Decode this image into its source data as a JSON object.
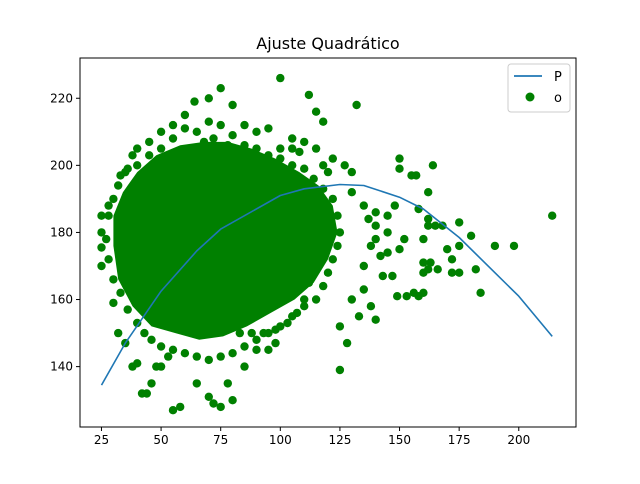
{
  "chart_data": {
    "type": "scatter",
    "title": "Ajuste Quadrático",
    "xlabel": "",
    "ylabel": "",
    "xlim": [
      16,
      224
    ],
    "ylim": [
      122,
      232
    ],
    "x_ticks": [
      25,
      50,
      75,
      100,
      125,
      150,
      175,
      200
    ],
    "y_ticks": [
      140,
      160,
      180,
      200,
      220
    ],
    "grid": false,
    "legend_position": "top-right",
    "colors": {
      "line": "#1f77b4",
      "points": "#008000"
    },
    "series": [
      {
        "name": "P",
        "kind": "line",
        "points": [
          [
            25,
            134.5
          ],
          [
            35,
            147
          ],
          [
            50,
            162.5
          ],
          [
            65,
            174.5
          ],
          [
            75,
            181
          ],
          [
            100,
            191
          ],
          [
            110,
            193
          ],
          [
            125,
            194.3
          ],
          [
            135,
            194
          ],
          [
            150,
            190.5
          ],
          [
            160,
            187
          ],
          [
            175,
            178.5
          ],
          [
            190,
            168
          ],
          [
            200,
            161
          ],
          [
            214,
            149
          ]
        ]
      },
      {
        "name": "o",
        "kind": "scatter",
        "points": [
          [
            25,
            185
          ],
          [
            25,
            180
          ],
          [
            25,
            175.5
          ],
          [
            25,
            170
          ],
          [
            28,
            188
          ],
          [
            30,
            159
          ],
          [
            32,
            150
          ],
          [
            35,
            147
          ],
          [
            38,
            140
          ],
          [
            40,
            141
          ],
          [
            42,
            132
          ],
          [
            44,
            132
          ],
          [
            46,
            135
          ],
          [
            48,
            140
          ],
          [
            50,
            140
          ],
          [
            55,
            127
          ],
          [
            58,
            128
          ],
          [
            65,
            135
          ],
          [
            70,
            131
          ],
          [
            72,
            129
          ],
          [
            75,
            128
          ],
          [
            78,
            135
          ],
          [
            80,
            130
          ],
          [
            85,
            140
          ],
          [
            90,
            145
          ],
          [
            95,
            145
          ],
          [
            98,
            147
          ],
          [
            53,
            143
          ],
          [
            60,
            215
          ],
          [
            64,
            219
          ],
          [
            70,
            220
          ],
          [
            75,
            223
          ],
          [
            80,
            218
          ],
          [
            85,
            212
          ],
          [
            90,
            210
          ],
          [
            95,
            211
          ],
          [
            100,
            226
          ],
          [
            105,
            205
          ],
          [
            112,
            221
          ],
          [
            115,
            216
          ],
          [
            118,
            213
          ],
          [
            132,
            218
          ],
          [
            125,
            139
          ],
          [
            150,
            202
          ],
          [
            150,
            199
          ],
          [
            155,
            197
          ],
          [
            157,
            197
          ],
          [
            158,
            187
          ],
          [
            162,
            184
          ],
          [
            162,
            192
          ],
          [
            164,
            200
          ],
          [
            162,
            182
          ],
          [
            165,
            182
          ],
          [
            168,
            182
          ],
          [
            160,
            178
          ],
          [
            160,
            171
          ],
          [
            160,
            168
          ],
          [
            162,
            169
          ],
          [
            166,
            169
          ],
          [
            163,
            171
          ],
          [
            160,
            162
          ],
          [
            158,
            161
          ],
          [
            156,
            162
          ],
          [
            153,
            161
          ],
          [
            149,
            161
          ],
          [
            147,
            167
          ],
          [
            150,
            175
          ],
          [
            152,
            178
          ],
          [
            145,
            180
          ],
          [
            145,
            185
          ],
          [
            140,
            186
          ],
          [
            148,
            188
          ],
          [
            140,
            182
          ],
          [
            170,
            175
          ],
          [
            175,
            183
          ],
          [
            175,
            176
          ],
          [
            172,
            172
          ],
          [
            172,
            168
          ],
          [
            175,
            168
          ],
          [
            180,
            179
          ],
          [
            182,
            169
          ],
          [
            184,
            162
          ],
          [
            190,
            176
          ],
          [
            198,
            176
          ],
          [
            214,
            185
          ],
          [
            130,
            160
          ],
          [
            125,
            152
          ],
          [
            128,
            147
          ],
          [
            133,
            155
          ],
          [
            135,
            163
          ],
          [
            138,
            158
          ],
          [
            140,
            154
          ],
          [
            135,
            170
          ],
          [
            142,
            173
          ],
          [
            143,
            167
          ],
          [
            145,
            174
          ],
          [
            140,
            178
          ],
          [
            138,
            176
          ],
          [
            137,
            184
          ],
          [
            135,
            188
          ],
          [
            130,
            192
          ],
          [
            130,
            198
          ],
          [
            127,
            200
          ],
          [
            122,
            202
          ],
          [
            120,
            198
          ],
          [
            118,
            200
          ],
          [
            115,
            205
          ],
          [
            110,
            207
          ],
          [
            108,
            204
          ],
          [
            105,
            208
          ],
          [
            100,
            205
          ],
          [
            95,
            203
          ],
          [
            90,
            205
          ],
          [
            85,
            206
          ],
          [
            80,
            209
          ],
          [
            75,
            212
          ],
          [
            70,
            213
          ],
          [
            65,
            210
          ],
          [
            60,
            211
          ],
          [
            55,
            208
          ],
          [
            50,
            205
          ],
          [
            45,
            203
          ],
          [
            40,
            200
          ],
          [
            35,
            198
          ],
          [
            32,
            194
          ],
          [
            30,
            190
          ],
          [
            28,
            185
          ],
          [
            27,
            178
          ],
          [
            28,
            172
          ],
          [
            30,
            166
          ],
          [
            33,
            162
          ],
          [
            36,
            157
          ],
          [
            40,
            153
          ],
          [
            43,
            150
          ],
          [
            46,
            148
          ],
          [
            50,
            146
          ],
          [
            55,
            145
          ],
          [
            60,
            144
          ],
          [
            65,
            143
          ],
          [
            70,
            142
          ],
          [
            75,
            143
          ],
          [
            80,
            144
          ],
          [
            85,
            146
          ],
          [
            90,
            148
          ],
          [
            95,
            150
          ],
          [
            100,
            152
          ],
          [
            105,
            155
          ],
          [
            110,
            158
          ],
          [
            115,
            160
          ],
          [
            118,
            164
          ],
          [
            120,
            168
          ],
          [
            122,
            172
          ],
          [
            124,
            176
          ],
          [
            125,
            180
          ],
          [
            124,
            185
          ],
          [
            122,
            190
          ],
          [
            118,
            193
          ],
          [
            114,
            196
          ],
          [
            110,
            199
          ],
          [
            105,
            200
          ],
          [
            100,
            202
          ],
          [
            50,
            210
          ],
          [
            55,
            212
          ],
          [
            45,
            207
          ],
          [
            40,
            205
          ],
          [
            38,
            203
          ],
          [
            36,
            199
          ],
          [
            33,
            197
          ],
          [
            57,
            203
          ],
          [
            62,
            205
          ],
          [
            68,
            207
          ],
          [
            72,
            208
          ],
          [
            78,
            206
          ],
          [
            83,
            202
          ],
          [
            88,
            199
          ],
          [
            92,
            196
          ],
          [
            97,
            192
          ],
          [
            102,
            188
          ],
          [
            106,
            184
          ],
          [
            110,
            180
          ],
          [
            112,
            175
          ],
          [
            113,
            170
          ],
          [
            112,
            165
          ],
          [
            110,
            160
          ],
          [
            107,
            156
          ],
          [
            103,
            153
          ],
          [
            98,
            151
          ],
          [
            93,
            150
          ],
          [
            88,
            150
          ],
          [
            83,
            150
          ],
          [
            78,
            151
          ],
          [
            73,
            152
          ],
          [
            68,
            153
          ],
          [
            63,
            155
          ],
          [
            58,
            157
          ],
          [
            53,
            160
          ],
          [
            48,
            163
          ],
          [
            43,
            167
          ],
          [
            40,
            171
          ],
          [
            38,
            176
          ],
          [
            38,
            181
          ],
          [
            40,
            186
          ],
          [
            43,
            190
          ],
          [
            47,
            194
          ],
          [
            52,
            197
          ],
          [
            57,
            199
          ],
          [
            62,
            200
          ],
          [
            68,
            200
          ],
          [
            73,
            199
          ],
          [
            78,
            197
          ],
          [
            83,
            194
          ],
          [
            87,
            190
          ],
          [
            90,
            186
          ],
          [
            92,
            181
          ],
          [
            93,
            176
          ],
          [
            92,
            171
          ],
          [
            90,
            166
          ],
          [
            87,
            162
          ],
          [
            83,
            159
          ],
          [
            78,
            157
          ],
          [
            73,
            156
          ],
          [
            68,
            156
          ],
          [
            63,
            158
          ],
          [
            58,
            161
          ],
          [
            54,
            165
          ],
          [
            51,
            169
          ],
          [
            49,
            174
          ],
          [
            49,
            179
          ],
          [
            51,
            184
          ],
          [
            54,
            188
          ],
          [
            58,
            191
          ],
          [
            63,
            193
          ],
          [
            68,
            194
          ],
          [
            73,
            193
          ],
          [
            77,
            190
          ],
          [
            80,
            186
          ],
          [
            82,
            181
          ],
          [
            82,
            176
          ],
          [
            80,
            171
          ],
          [
            77,
            167
          ],
          [
            73,
            164
          ],
          [
            68,
            163
          ],
          [
            64,
            164
          ],
          [
            61,
            167
          ],
          [
            59,
            171
          ],
          [
            59,
            176
          ],
          [
            61,
            181
          ],
          [
            64,
            184
          ],
          [
            68,
            186
          ],
          [
            72,
            185
          ],
          [
            74,
            182
          ],
          [
            75,
            178
          ],
          [
            74,
            174
          ],
          [
            72,
            171
          ],
          [
            69,
            170
          ],
          [
            67,
            172
          ],
          [
            66,
            176
          ],
          [
            67,
            180
          ],
          [
            70,
            181
          ],
          [
            71,
            178
          ]
        ]
      }
    ]
  }
}
